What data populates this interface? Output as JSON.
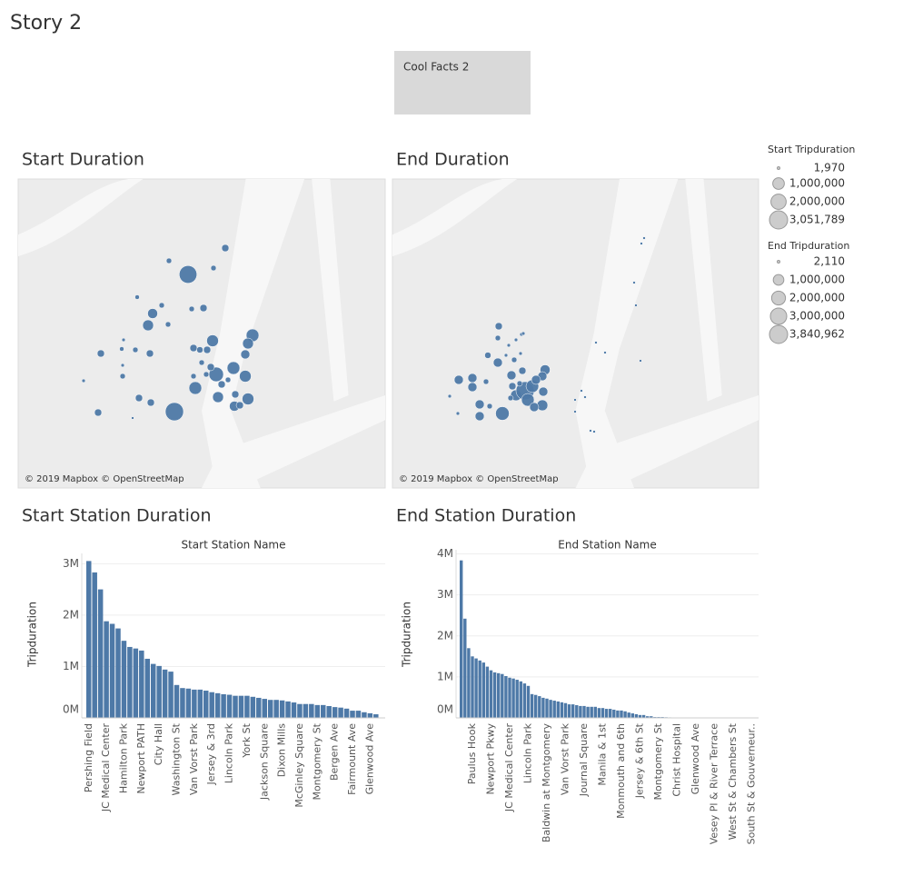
{
  "title": "Story 2",
  "text_box": "Cool Facts 2",
  "chart_data": [
    {
      "type": "bubble_map",
      "title": "Start Duration",
      "attribution": "© 2019 Mapbox © OpenStreetMap",
      "color": "#4e79a7",
      "size_legend": {
        "title": "Start Tripduration",
        "values": [
          {
            "value": 1970,
            "label": "1,970"
          },
          {
            "value": 1000000,
            "label": "1,000,000"
          },
          {
            "value": 2000000,
            "label": "2,000,000"
          },
          {
            "value": 3051789,
            "label": "3,051,789"
          }
        ]
      },
      "values": [
        2830000,
        3051789,
        264000,
        95000,
        95000,
        42000,
        95000,
        95000,
        264000,
        676000,
        855000,
        95000,
        1056000,
        1280000,
        855000,
        518000,
        264000,
        10600,
        42000,
        95000,
        264000,
        264000,
        169000,
        264000,
        10600,
        95000,
        95000,
        95000,
        95000,
        1790000,
        1280000,
        1056000,
        264000,
        95000,
        1280000,
        855000,
        264000,
        1056000,
        676000,
        264000,
        264000,
        264000,
        10600,
        264000,
        1970,
        264000
      ]
    },
    {
      "type": "bubble_map",
      "title": "End Duration",
      "attribution": "© 2019 Mapbox © OpenStreetMap",
      "color": "#4e79a7",
      "size_legend": {
        "title": "End Tripduration",
        "values": [
          {
            "value": 2110,
            "label": "2,110"
          },
          {
            "value": 1000000,
            "label": "1,000,000"
          },
          {
            "value": 2000000,
            "label": "2,000,000"
          },
          {
            "value": 3000000,
            "label": "3,000,000"
          },
          {
            "value": 3840962,
            "label": "3,840,962"
          }
        ]
      },
      "values": [
        332000,
        119000,
        13400,
        13400,
        13400,
        13400,
        213000,
        652000,
        119000,
        13400,
        13400,
        652000,
        652000,
        652000,
        119000,
        13400,
        652000,
        119000,
        1913000,
        652000,
        13400,
        652000,
        332000,
        1076000,
        332000,
        3840962,
        1610000,
        1610000,
        652000,
        1076000,
        652000,
        851000,
        652000,
        652000,
        119000,
        119000,
        2110,
        2110,
        2110,
        2110,
        2110,
        2110,
        2110,
        2110,
        2110,
        2110,
        2110,
        2110,
        2110
      ]
    },
    {
      "type": "bar",
      "title": "Start Station Duration",
      "x_label": "Start Station Name",
      "y_label": "Tripduration",
      "color": "#4e79a7",
      "grid": true,
      "ylim": [
        0,
        3200000
      ],
      "yticks": [
        {
          "value": 0,
          "label": "0M"
        },
        {
          "value": 1000000,
          "label": "1M"
        },
        {
          "value": 2000000,
          "label": "2M"
        },
        {
          "value": 3000000,
          "label": "3M"
        }
      ],
      "categories": [
        "Pershing Field",
        null,
        null,
        "JC Medical Center",
        null,
        null,
        "Hamilton Park",
        null,
        null,
        "Newport PATH",
        null,
        null,
        "City Hall",
        null,
        null,
        "Washington St",
        null,
        null,
        "Van Vorst Park",
        null,
        null,
        "Jersey & 3rd",
        null,
        null,
        "Lincoln Park",
        null,
        null,
        "York St",
        null,
        null,
        "Jackson Square",
        null,
        null,
        "Dixon Mills",
        null,
        null,
        "McGinley Square",
        null,
        null,
        "Montgomery St",
        null,
        null,
        "Bergen Ave",
        null,
        null,
        "Fairmount Ave",
        null,
        null,
        "Glenwood Ave",
        null
      ],
      "values": [
        3051789,
        2830000,
        2500000,
        1880000,
        1830000,
        1740000,
        1500000,
        1380000,
        1350000,
        1310000,
        1150000,
        1050000,
        1010000,
        940000,
        900000,
        640000,
        580000,
        570000,
        550000,
        550000,
        530000,
        500000,
        480000,
        460000,
        450000,
        430000,
        430000,
        430000,
        410000,
        390000,
        370000,
        350000,
        350000,
        340000,
        320000,
        300000,
        270000,
        270000,
        270000,
        250000,
        250000,
        230000,
        210000,
        200000,
        180000,
        140000,
        140000,
        110000,
        90000,
        70000
      ]
    },
    {
      "type": "bar",
      "title": "End Station Duration",
      "x_label": "End Station Name",
      "y_label": "Tripduration",
      "color": "#4e79a7",
      "grid": true,
      "ylim": [
        0,
        4100000
      ],
      "yticks": [
        {
          "value": 0,
          "label": "0M"
        },
        {
          "value": 1000000,
          "label": "1M"
        },
        {
          "value": 2000000,
          "label": "2M"
        },
        {
          "value": 3000000,
          "label": "3M"
        },
        {
          "value": 4000000,
          "label": "4M"
        }
      ],
      "categories": [
        null,
        null,
        null,
        "Paulus Hook",
        null,
        null,
        null,
        null,
        "Newport Pkwy",
        null,
        null,
        null,
        null,
        "JC Medical Center",
        null,
        null,
        null,
        null,
        "Lincoln Park",
        null,
        null,
        null,
        null,
        "Baldwin at Montgomery",
        null,
        null,
        null,
        null,
        "Van Vorst Park",
        null,
        null,
        null,
        null,
        "Journal Square",
        null,
        null,
        null,
        null,
        "Manila & 1st",
        null,
        null,
        null,
        null,
        "Monmouth and 6th",
        null,
        null,
        null,
        null,
        "Jersey & 6th St",
        null,
        null,
        null,
        null,
        "Montgomery St",
        null,
        null,
        null,
        null,
        "Christ Hospital",
        null,
        null,
        null,
        null,
        "Glenwood Ave",
        null,
        null,
        null,
        null,
        "Vesey Pl & River Terrace",
        null,
        null,
        null,
        null,
        "West St & Chambers St",
        null,
        null,
        null,
        null,
        "South St & Gouverneur..",
        null
      ],
      "values": [
        3840962,
        2420000,
        1700000,
        1500000,
        1450000,
        1400000,
        1350000,
        1250000,
        1160000,
        1110000,
        1090000,
        1070000,
        1020000,
        980000,
        960000,
        930000,
        890000,
        840000,
        780000,
        580000,
        560000,
        530000,
        490000,
        470000,
        440000,
        420000,
        400000,
        380000,
        360000,
        330000,
        330000,
        310000,
        290000,
        290000,
        270000,
        270000,
        270000,
        240000,
        240000,
        220000,
        220000,
        200000,
        180000,
        180000,
        160000,
        130000,
        110000,
        90000,
        70000,
        70000,
        40000,
        40000,
        20000,
        20000,
        20000,
        15000,
        12000,
        10000,
        9000,
        8000,
        7000,
        6500,
        6000,
        5500,
        5000,
        4800,
        4500,
        4200,
        4000,
        3800,
        3600,
        3400,
        3200,
        3000,
        2800,
        2600,
        2500,
        2400,
        2200,
        2110
      ]
    }
  ]
}
